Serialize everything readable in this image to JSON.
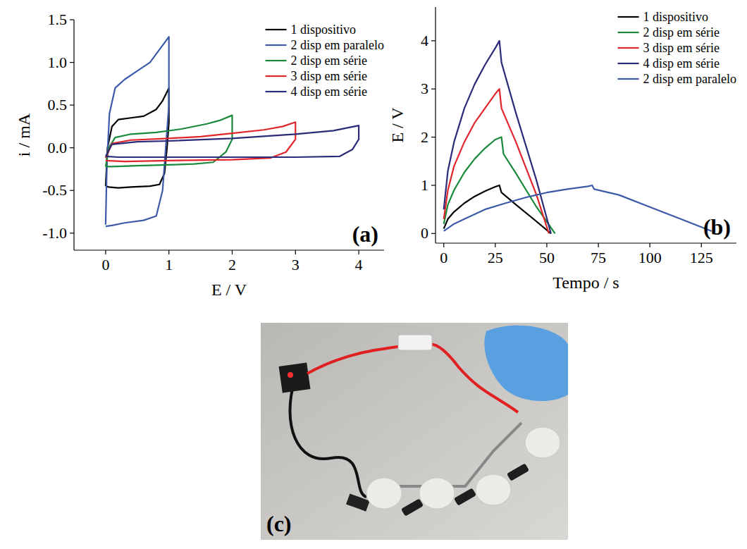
{
  "chart_data": [
    {
      "type": "line",
      "annotations": [
        "(a)"
      ],
      "x_label": "E / V",
      "y_label": "i / mA",
      "xlim": [
        -0.5,
        4.4
      ],
      "ylim": [
        -1.2,
        1.5
      ],
      "xticks": [
        0,
        1,
        2,
        3,
        4
      ],
      "yticks": [
        {
          "value": -1,
          "label": "-1.0"
        },
        -0.5,
        {
          "value": 0,
          "label": "0.0"
        },
        0.5,
        {
          "value": 1,
          "label": "1.0"
        },
        1.5
      ],
      "legend": "upper right",
      "series": [
        {
          "name": "1 dispositivo",
          "color": "#000000",
          "x": [
            0,
            0.03,
            0.1,
            0.2,
            0.4,
            0.6,
            0.8,
            0.9,
            1.0,
            1.0,
            0.97,
            0.93,
            0.85,
            0.7,
            0.4,
            0.2,
            0.05,
            0
          ],
          "values": [
            -0.45,
            0.0,
            0.25,
            0.33,
            0.35,
            0.37,
            0.45,
            0.55,
            0.7,
            0.3,
            0.0,
            -0.3,
            -0.43,
            -0.45,
            -0.46,
            -0.47,
            -0.46,
            -0.45
          ]
        },
        {
          "name": "2 disp em paralelo",
          "color": "#3c5aa8",
          "x": [
            0,
            0.02,
            0.06,
            0.15,
            0.3,
            0.5,
            0.7,
            0.9,
            1.0,
            1.0,
            0.95,
            0.9,
            0.8,
            0.6,
            0.3,
            0.1,
            0
          ],
          "values": [
            -0.9,
            -0.2,
            0.4,
            0.7,
            0.8,
            0.9,
            1.0,
            1.2,
            1.3,
            0.5,
            0.0,
            -0.5,
            -0.8,
            -0.85,
            -0.88,
            -0.91,
            -0.92
          ]
        },
        {
          "name": "2 disp em série",
          "color": "#1a8a3a",
          "x": [
            0,
            0.05,
            0.15,
            0.4,
            0.8,
            1.2,
            1.6,
            1.8,
            2.0,
            2.0,
            1.9,
            1.7,
            1.4,
            1.0,
            0.5,
            0.1,
            0
          ],
          "values": [
            -0.22,
            0.0,
            0.12,
            0.16,
            0.18,
            0.22,
            0.28,
            0.32,
            0.38,
            0.1,
            -0.05,
            -0.17,
            -0.19,
            -0.2,
            -0.21,
            -0.22,
            -0.22
          ]
        },
        {
          "name": "3 disp em série",
          "color": "#e0262b",
          "x": [
            0,
            0.1,
            0.4,
            1.0,
            1.5,
            2.0,
            2.5,
            2.8,
            3.0,
            3.0,
            2.85,
            2.6,
            2.0,
            1.0,
            0.3,
            0
          ],
          "values": [
            -0.12,
            0.05,
            0.09,
            0.11,
            0.13,
            0.17,
            0.21,
            0.25,
            0.3,
            0.1,
            -0.05,
            -0.12,
            -0.14,
            -0.15,
            -0.16,
            -0.15
          ]
        },
        {
          "name": "4 disp em série",
          "color": "#2b2b7a",
          "x": [
            0,
            0.1,
            0.5,
            1.0,
            2.0,
            3.0,
            3.6,
            4.0,
            4.0,
            3.9,
            3.7,
            3.0,
            2.0,
            1.0,
            0.2,
            0
          ],
          "values": [
            -0.1,
            0.04,
            0.07,
            0.08,
            0.11,
            0.16,
            0.2,
            0.26,
            0.1,
            -0.02,
            -0.1,
            -0.11,
            -0.11,
            -0.11,
            -0.11,
            -0.1
          ]
        }
      ]
    },
    {
      "type": "line",
      "annotations": [
        "(b)"
      ],
      "x_label": "Tempo / s",
      "y_label": "E / V",
      "xlim": [
        -4,
        142
      ],
      "ylim": [
        -0.2,
        4.7
      ],
      "xticks": [
        0,
        25,
        50,
        75,
        100,
        125
      ],
      "yticks": [
        0,
        1,
        2,
        3,
        4
      ],
      "legend": "upper right",
      "series": [
        {
          "name": "1 dispositivo",
          "color": "#000000",
          "x": [
            0,
            2,
            5,
            10,
            15,
            20,
            25,
            27,
            28,
            35,
            45,
            52
          ],
          "values": [
            0.1,
            0.3,
            0.45,
            0.63,
            0.77,
            0.88,
            0.97,
            1.0,
            0.85,
            0.6,
            0.25,
            0.0
          ]
        },
        {
          "name": "2 disp em série",
          "color": "#1a8a3a",
          "x": [
            0,
            2,
            5,
            10,
            15,
            20,
            25,
            28,
            29,
            35,
            45,
            54
          ],
          "values": [
            0.2,
            0.6,
            0.9,
            1.27,
            1.55,
            1.77,
            1.95,
            2.0,
            1.65,
            1.25,
            0.55,
            0.0
          ]
        },
        {
          "name": "3 disp em série",
          "color": "#e0262b",
          "x": [
            0,
            2,
            5,
            10,
            15,
            20,
            25,
            27,
            28,
            35,
            45,
            51
          ],
          "values": [
            0.3,
            0.9,
            1.4,
            1.9,
            2.3,
            2.6,
            2.9,
            3.0,
            2.6,
            1.9,
            0.8,
            0.0
          ]
        },
        {
          "name": "4 disp em série",
          "color": "#2b2b7a",
          "x": [
            0,
            2,
            5,
            10,
            15,
            20,
            25,
            27,
            28,
            35,
            45,
            52
          ],
          "values": [
            0.5,
            1.3,
            1.9,
            2.6,
            3.1,
            3.5,
            3.85,
            4.0,
            3.55,
            2.5,
            1.1,
            0.0
          ]
        },
        {
          "name": "2 disp em paralelo",
          "color": "#3c5aa8",
          "x": [
            0,
            5,
            10,
            20,
            30,
            40,
            50,
            60,
            70,
            72,
            73,
            85,
            100,
            115,
            130
          ],
          "values": [
            0.05,
            0.2,
            0.3,
            0.5,
            0.63,
            0.75,
            0.85,
            0.92,
            0.98,
            1.0,
            0.92,
            0.8,
            0.55,
            0.3,
            0.05
          ]
        }
      ]
    }
  ],
  "photo": {
    "label": "(c)"
  }
}
